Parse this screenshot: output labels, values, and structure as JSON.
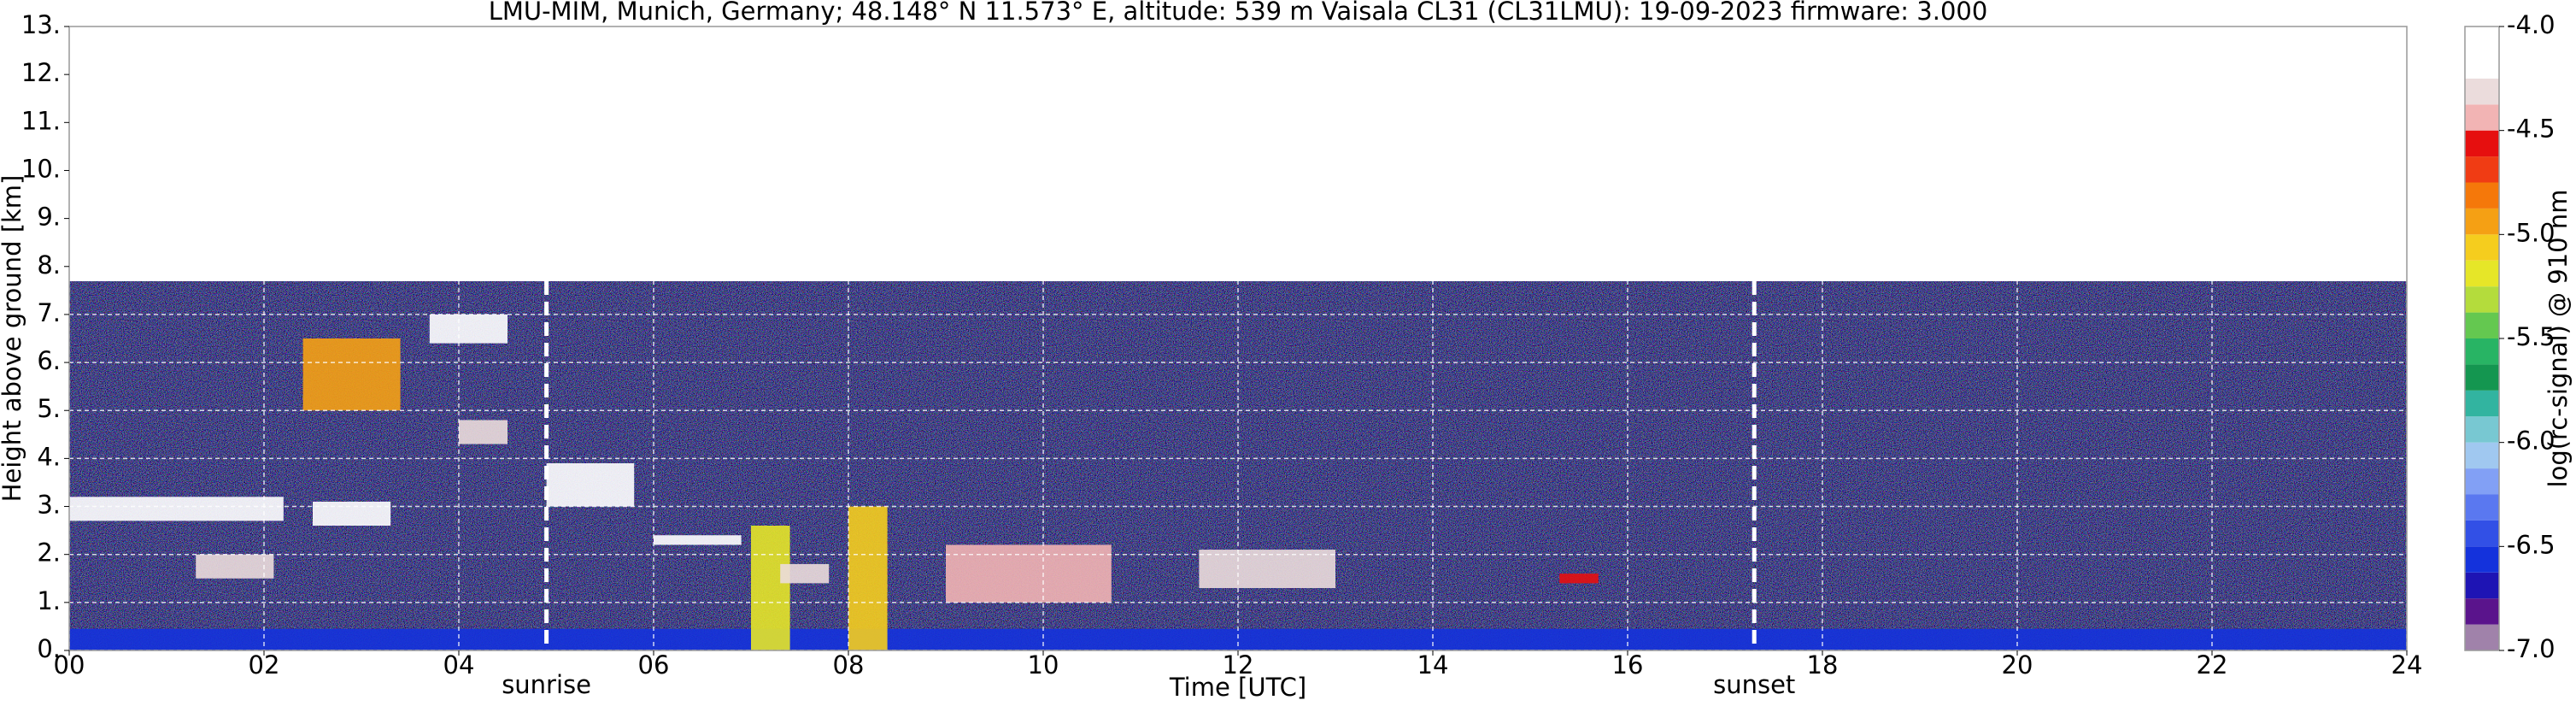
{
  "chart_data": {
    "type": "heatmap",
    "title": "LMU-MIM, Munich, Germany; 48.148° N 11.573° E, altitude: 539 m    Vaisala CL31 (CL31LMU): 19-09-2023    firmware: 3.000",
    "xlabel": "Time [UTC]",
    "ylabel": "Height above ground [km]",
    "xlim": [
      0,
      24
    ],
    "xticks": [
      {
        "value": 0,
        "label": "00"
      },
      {
        "value": 2,
        "label": "02"
      },
      {
        "value": 4,
        "label": "04"
      },
      {
        "value": 6,
        "label": "06"
      },
      {
        "value": 8,
        "label": "08"
      },
      {
        "value": 10,
        "label": "10"
      },
      {
        "value": 12,
        "label": "12"
      },
      {
        "value": 14,
        "label": "14"
      },
      {
        "value": 16,
        "label": "16"
      },
      {
        "value": 18,
        "label": "18"
      },
      {
        "value": 20,
        "label": "20"
      },
      {
        "value": 22,
        "label": "22"
      },
      {
        "value": 24,
        "label": "24"
      }
    ],
    "ylim": [
      0,
      13
    ],
    "yticks": [
      {
        "value": 0,
        "label": "0."
      },
      {
        "value": 1,
        "label": "1."
      },
      {
        "value": 2,
        "label": "2."
      },
      {
        "value": 3,
        "label": "3."
      },
      {
        "value": 4,
        "label": "4."
      },
      {
        "value": 5,
        "label": "5."
      },
      {
        "value": 6,
        "label": "6."
      },
      {
        "value": 7,
        "label": "7."
      },
      {
        "value": 8,
        "label": "8."
      },
      {
        "value": 9,
        "label": "9."
      },
      {
        "value": 10,
        "label": "10."
      },
      {
        "value": 11,
        "label": "11."
      },
      {
        "value": 12,
        "label": "12."
      },
      {
        "value": 13,
        "label": "13."
      }
    ],
    "grid": true,
    "colorbar": {
      "label": "log(rc-signal) @ 910 nm",
      "lim": [
        -7,
        -4
      ],
      "ticks": [
        {
          "value": -7,
          "label": "-7.0"
        },
        {
          "value": -6.5,
          "label": "-6.5"
        },
        {
          "value": -6,
          "label": "-6.0"
        },
        {
          "value": -5.5,
          "label": "-5.5"
        },
        {
          "value": -5,
          "label": "-5.0"
        },
        {
          "value": -4.5,
          "label": "-4.5"
        },
        {
          "value": -4,
          "label": "-4.0"
        }
      ],
      "colors": [
        "#a082aa",
        "#5a148c",
        "#1e14b4",
        "#1432dc",
        "#3250e6",
        "#5a78f0",
        "#82a0f5",
        "#a0c8f0",
        "#78c8d2",
        "#32b4a0",
        "#149650",
        "#28b464",
        "#64c850",
        "#b4dc3c",
        "#e6e628",
        "#f5cd1e",
        "#f5a014",
        "#f5780a",
        "#f03c14",
        "#e60f0f",
        "#f2b4b4",
        "#ebdcdc",
        "#ffffff",
        "#ffffff"
      ]
    },
    "features": [
      {
        "x": [
          0,
          24
        ],
        "y": [
          0,
          0.45
        ],
        "value": -6.6
      },
      {
        "x": [
          0,
          2.2
        ],
        "y": [
          2.7,
          3.2
        ],
        "value": -4.2
      },
      {
        "x": [
          1.3,
          2.1
        ],
        "y": [
          1.5,
          2.0
        ],
        "value": -4.3
      },
      {
        "x": [
          2.4,
          3.4
        ],
        "y": [
          5.0,
          6.5
        ],
        "value": -5.0
      },
      {
        "x": [
          2.5,
          3.3
        ],
        "y": [
          2.6,
          3.1
        ],
        "value": -4.2
      },
      {
        "x": [
          3.7,
          4.5
        ],
        "y": [
          6.4,
          7.0
        ],
        "value": -4.2
      },
      {
        "x": [
          4.0,
          4.5
        ],
        "y": [
          4.3,
          4.8
        ],
        "value": -4.3
      },
      {
        "x": [
          4.9,
          5.8
        ],
        "y": [
          3.0,
          3.9
        ],
        "value": -4.2
      },
      {
        "x": [
          6.0,
          6.9
        ],
        "y": [
          2.2,
          2.4
        ],
        "value": -4.2
      },
      {
        "x": [
          7.0,
          7.4
        ],
        "y": [
          0,
          2.6
        ],
        "value": -5.2
      },
      {
        "x": [
          7.3,
          7.8
        ],
        "y": [
          1.4,
          1.8
        ],
        "value": -4.3
      },
      {
        "x": [
          8.0,
          8.4
        ],
        "y": [
          0,
          3.0
        ],
        "value": -5.1
      },
      {
        "x": [
          9.0,
          10.7
        ],
        "y": [
          1.0,
          2.2
        ],
        "value": -4.4
      },
      {
        "x": [
          11.6,
          13.0
        ],
        "y": [
          1.3,
          2.1
        ],
        "value": -4.3
      },
      {
        "x": [
          15.3,
          15.7
        ],
        "y": [
          1.4,
          1.6
        ],
        "value": -4.6
      }
    ],
    "annotations": [
      {
        "x": 4.9,
        "label": "sunrise"
      },
      {
        "x": 17.3,
        "label": "sunset"
      }
    ]
  }
}
